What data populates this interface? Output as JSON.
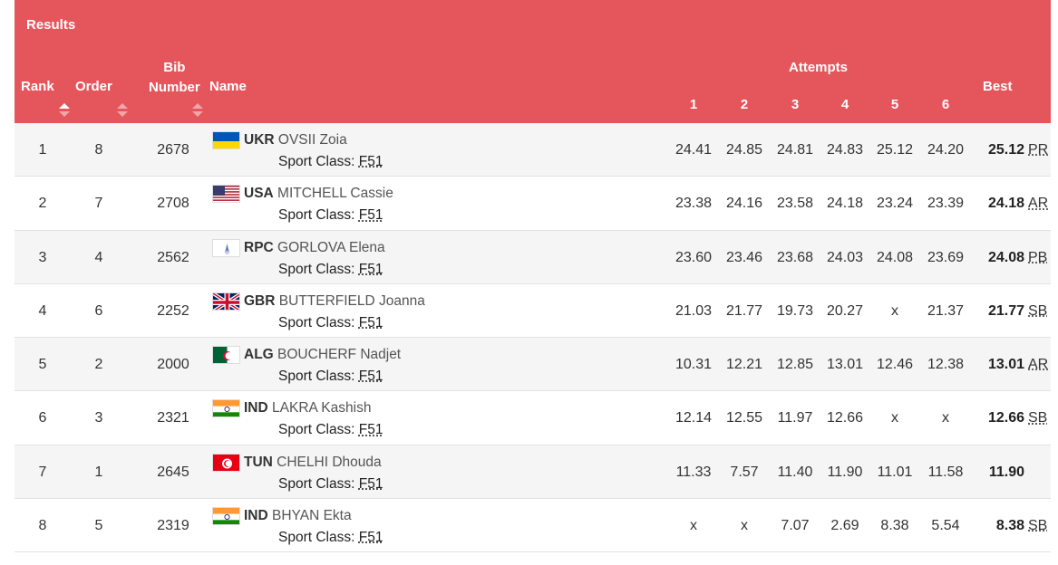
{
  "header": {
    "title": "Results",
    "rank": "Rank",
    "order": "Order",
    "bib_line1": "Bib",
    "bib_line2": "Number",
    "name": "Name",
    "attempts": "Attempts",
    "attempt_numbers": [
      "1",
      "2",
      "3",
      "4",
      "5",
      "6"
    ],
    "best": "Best",
    "sort_color_active": "#ffffff",
    "sort_color_inactive": "#f0a6a9"
  },
  "sport_class_label": "Sport Class:",
  "colors": {
    "header_bg": "#e5565c",
    "row_alt_bg": "#f5f5f5",
    "divider": "#e2e2e2"
  },
  "rows": [
    {
      "rank": "1",
      "order": "8",
      "bib": "2678",
      "flag": "ukr-flag-icon",
      "country": "UKR",
      "name": "OVSII Zoia",
      "sport_class": "F51",
      "attempts": [
        "24.41",
        "24.85",
        "24.81",
        "24.83",
        "25.12",
        "24.20"
      ],
      "best": "25.12",
      "record": "PR"
    },
    {
      "rank": "2",
      "order": "7",
      "bib": "2708",
      "flag": "usa-flag-icon",
      "country": "USA",
      "name": "MITCHELL Cassie",
      "sport_class": "F51",
      "attempts": [
        "23.38",
        "24.16",
        "23.58",
        "24.18",
        "23.24",
        "23.39"
      ],
      "best": "24.18",
      "record": "AR"
    },
    {
      "rank": "3",
      "order": "4",
      "bib": "2562",
      "flag": "rpc-flag-icon",
      "country": "RPC",
      "name": "GORLOVA Elena",
      "sport_class": "F51",
      "attempts": [
        "23.60",
        "23.46",
        "23.68",
        "24.03",
        "24.08",
        "23.69"
      ],
      "best": "24.08",
      "record": "PB"
    },
    {
      "rank": "4",
      "order": "6",
      "bib": "2252",
      "flag": "gbr-flag-icon",
      "country": "GBR",
      "name": "BUTTERFIELD Joanna",
      "sport_class": "F51",
      "attempts": [
        "21.03",
        "21.77",
        "19.73",
        "20.27",
        "x",
        "21.37"
      ],
      "best": "21.77",
      "record": "SB"
    },
    {
      "rank": "5",
      "order": "2",
      "bib": "2000",
      "flag": "alg-flag-icon",
      "country": "ALG",
      "name": "BOUCHERF Nadjet",
      "sport_class": "F51",
      "attempts": [
        "10.31",
        "12.21",
        "12.85",
        "13.01",
        "12.46",
        "12.38"
      ],
      "best": "13.01",
      "record": "AR"
    },
    {
      "rank": "6",
      "order": "3",
      "bib": "2321",
      "flag": "ind-flag-icon",
      "country": "IND",
      "name": "LAKRA Kashish",
      "sport_class": "F51",
      "attempts": [
        "12.14",
        "12.55",
        "11.97",
        "12.66",
        "x",
        "x"
      ],
      "best": "12.66",
      "record": "SB"
    },
    {
      "rank": "7",
      "order": "1",
      "bib": "2645",
      "flag": "tun-flag-icon",
      "country": "TUN",
      "name": "CHELHI Dhouda",
      "sport_class": "F51",
      "attempts": [
        "11.33",
        "7.57",
        "11.40",
        "11.90",
        "11.01",
        "11.58"
      ],
      "best": "11.90",
      "record": ""
    },
    {
      "rank": "8",
      "order": "5",
      "bib": "2319",
      "flag": "ind-flag-icon",
      "country": "IND",
      "name": "BHYAN Ekta",
      "sport_class": "F51",
      "attempts": [
        "x",
        "x",
        "7.07",
        "2.69",
        "8.38",
        "5.54"
      ],
      "best": "8.38",
      "record": "SB"
    }
  ]
}
